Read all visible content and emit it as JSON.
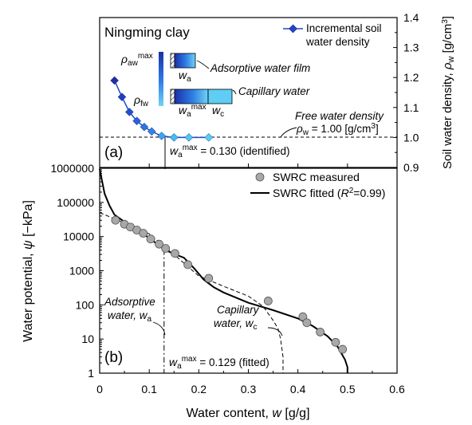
{
  "chart_data": [
    {
      "panel_label": "(a)",
      "type": "line",
      "title": "Ningming clay",
      "ylabel": "Soil water density, ρw [g/cm³]",
      "ylim": [
        0.9,
        1.4
      ],
      "yticks": [
        "0.9",
        "1.0",
        "1.1",
        "1.2",
        "1.3",
        "1.4"
      ],
      "xlim": [
        0,
        0.6
      ],
      "series": [
        {
          "name": "Incremental soil water density",
          "x": [
            0.03,
            0.045,
            0.06,
            0.075,
            0.09,
            0.105,
            0.125,
            0.15,
            0.18,
            0.22
          ],
          "y": [
            1.19,
            1.135,
            1.085,
            1.055,
            1.035,
            1.02,
            1.005,
            1.0,
            1.0,
            1.0
          ],
          "colors": [
            "#1b2fa8",
            "#1f3fc0",
            "#2050d0",
            "#2563dd",
            "#2a74e4",
            "#2f85e8",
            "#36a6ee",
            "#41bff2",
            "#4bc9f3",
            "#52d0f5"
          ]
        }
      ],
      "reference_line": {
        "y": 1.0,
        "label": "Free water density",
        "sublabel": "ρw = 1.00 [g/cm³]"
      },
      "marker_line": {
        "x": 0.13,
        "label": "wamax = 0.130 (identified)"
      },
      "inset": {
        "rho_aw_label": "ρawmax",
        "rho_fw_label": "ρfw",
        "film_label": "Adsorptive water film",
        "wa_label": "wa",
        "capillary_label": "Capillary water",
        "wamax_label": "wamax",
        "wc_label": "wc"
      }
    },
    {
      "panel_label": "(b)",
      "type": "line",
      "xlabel": "Water content, w [g/g]",
      "ylabel": "Water potential, ψ [−kPa]",
      "xlim": [
        0,
        0.6
      ],
      "xticks": [
        "0",
        "0.1",
        "0.2",
        "0.3",
        "0.4",
        "0.5",
        "0.6"
      ],
      "yscale": "log",
      "ylim": [
        1,
        1000000
      ],
      "yticks": [
        "1",
        "10",
        "100",
        "1000",
        "10000",
        "100000",
        "1000000"
      ],
      "legend_position": "top-right",
      "series": [
        {
          "name": "SWRC measured",
          "style": "markers",
          "x": [
            0.032,
            0.05,
            0.062,
            0.075,
            0.088,
            0.103,
            0.12,
            0.133,
            0.152,
            0.178,
            0.22,
            0.34,
            0.41,
            0.418,
            0.445,
            0.476,
            0.49
          ],
          "y": [
            30000,
            23000,
            19000,
            15500,
            12500,
            8500,
            6000,
            4500,
            3200,
            1500,
            600,
            130,
            45,
            30,
            16,
            8,
            5
          ]
        },
        {
          "name": "SWRC fitted (R² = 0.99)",
          "style": "solid",
          "x": [
            0,
            0.01,
            0.02,
            0.03,
            0.05,
            0.07,
            0.09,
            0.11,
            0.13,
            0.15,
            0.17,
            0.19,
            0.21,
            0.23,
            0.25,
            0.3,
            0.35,
            0.4,
            0.43,
            0.46,
            0.48,
            0.495,
            0.5,
            0.5
          ],
          "y": [
            950000,
            180000,
            80000,
            43000,
            27000,
            17500,
            11500,
            7000,
            4200,
            3100,
            2400,
            1200,
            550,
            330,
            230,
            115,
            70,
            40,
            24,
            12,
            6,
            2.5,
            1.5,
            1
          ]
        },
        {
          "name": "Capillary water, wc",
          "style": "dashed",
          "x": [
            0,
            0.05,
            0.1,
            0.15,
            0.2,
            0.25,
            0.3,
            0.33,
            0.35,
            0.36,
            0.365,
            0.37,
            0.37
          ],
          "y": [
            50000,
            25000,
            12000,
            3000,
            700,
            350,
            180,
            90,
            35,
            20,
            10,
            3,
            1
          ]
        },
        {
          "name": "Adsorptive water, wa",
          "style": "dashdot",
          "x": [
            0.13,
            0.13
          ],
          "y": [
            4200,
            1
          ]
        }
      ],
      "annotations": {
        "adsorptive": [
          "Adsorptive",
          "water, wa"
        ],
        "capillary": [
          "Capillary",
          "water, wc"
        ],
        "fitted_marker": "wamax = 0.129 (fitted)"
      }
    }
  ]
}
